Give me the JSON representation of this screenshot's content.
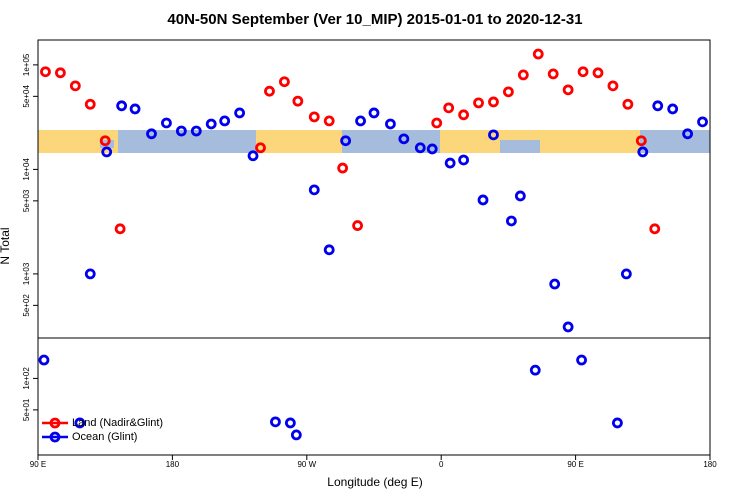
{
  "chart_data": {
    "type": "scatter",
    "title": "40N-50N September (Ver 10_MIP)   2015-01-01 to 2020-12-31",
    "x_label": "Longitude (deg E)",
    "y_label": "N Total",
    "log_y": true,
    "legend": "bottomleft",
    "xlim": [
      90,
      540
    ],
    "xticks": [
      {
        "value": 90,
        "label": "90 E"
      },
      180,
      {
        "value": 270,
        "label": "90 W"
      },
      {
        "value": 360,
        "label": "0"
      },
      {
        "value": 450,
        "label": "90 E"
      },
      {
        "value": 540,
        "label": "180"
      }
    ],
    "ylim": [
      18.5,
      173000
    ],
    "yticks": [
      {
        "value": 100000,
        "label": "1e+05"
      },
      {
        "value": 50000,
        "label": "5e+04"
      },
      {
        "value": 10000,
        "label": "1e+04"
      },
      {
        "value": 5000,
        "label": "5e+03"
      },
      {
        "value": 1000,
        "label": "1e+03"
      },
      {
        "value": 500,
        "label": "5e+02"
      },
      {
        "value": 100,
        "label": "1e+02"
      },
      {
        "value": 50,
        "label": "5e+01"
      }
    ],
    "series": [
      {
        "name": "Land (Nadir&Glint)",
        "color": "#ff0000",
        "x": [
          95,
          105,
          115,
          125,
          135,
          145,
          239,
          245,
          255,
          264,
          275,
          285,
          294,
          304,
          357,
          365,
          375,
          385,
          395,
          405,
          415,
          425,
          435,
          445,
          455,
          465,
          475,
          485,
          494,
          503
        ],
        "values": [
          86000,
          84000,
          63000,
          42000,
          18800,
          2700,
          16100,
          56000,
          69000,
          45000,
          31800,
          29100,
          10300,
          2900,
          27800,
          38800,
          33300,
          43300,
          44200,
          55200,
          80200,
          127000,
          82000,
          57700,
          86000,
          84000,
          63000,
          42000,
          18800,
          2700
        ]
      },
      {
        "name": "Ocean (Glint)",
        "color": "#0000ee",
        "x": [
          94,
          118,
          125,
          136,
          146,
          155,
          166,
          176,
          186,
          196,
          206,
          215,
          225,
          234,
          249,
          259,
          263,
          275,
          285,
          296,
          306,
          315,
          326,
          335,
          346,
          354,
          366,
          375,
          388,
          395,
          407,
          413,
          423,
          436,
          445,
          454,
          478,
          484,
          495,
          505,
          515,
          525,
          535
        ],
        "values": [
          150,
          37.5,
          1000,
          14700,
          40600,
          37900,
          21900,
          27800,
          23300,
          23300,
          27200,
          29100,
          34700,
          13500,
          38.4,
          37.5,
          28.8,
          6370,
          1700,
          18800,
          29100,
          34700,
          27200,
          19600,
          16100,
          15700,
          11500,
          12300,
          5100,
          21400,
          3210,
          5570,
          120,
          800,
          311,
          150,
          37.5,
          1000,
          14700,
          40600,
          37900,
          21900,
          28500
        ]
      }
    ]
  }
}
